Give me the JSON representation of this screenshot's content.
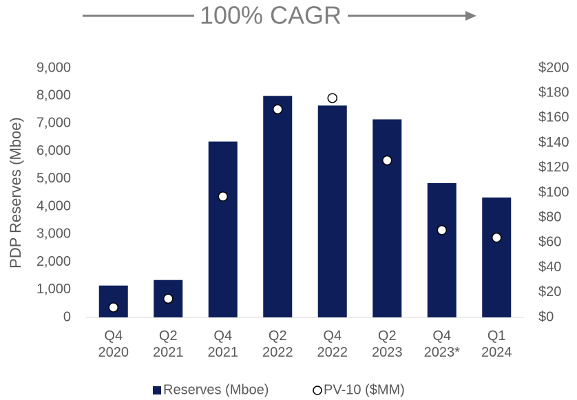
{
  "chart_data": {
    "type": "bar",
    "title": "100% CAGR",
    "y_label": "PDP Reserves (Mboe)",
    "categories": [
      "Q4\n2020",
      "Q2\n2021",
      "Q4\n2021",
      "Q2\n2022",
      "Q4\n2022",
      "Q2\n2023",
      "Q4\n2023*",
      "Q1\n2024"
    ],
    "series": [
      {
        "name": "Reserves (Mboe)",
        "color": "#0d1e5a",
        "values": [
          1150,
          1350,
          6350,
          8000,
          7650,
          7150,
          4850,
          4330
        ]
      },
      {
        "name": "PV-10 ($MM)",
        "color": "#ffffff",
        "axis": "y2",
        "values": [
          8,
          15,
          97,
          167,
          176,
          126,
          70,
          64
        ]
      }
    ],
    "ylim": [
      0,
      9000
    ],
    "yticks": [
      0,
      {
        "value": 1000,
        "label": "1,000"
      },
      {
        "value": 2000,
        "label": "2,000"
      },
      {
        "value": 3000,
        "label": "3,000"
      },
      {
        "value": 4000,
        "label": "4,000"
      },
      {
        "value": 5000,
        "label": "5,000"
      },
      {
        "value": 6000,
        "label": "6,000"
      },
      {
        "value": 7000,
        "label": "7,000"
      },
      {
        "value": 8000,
        "label": "8,000"
      },
      {
        "value": 9000,
        "label": "9,000"
      }
    ],
    "y2lim": [
      0,
      200
    ],
    "y2ticks": [
      {
        "value": 0,
        "label": "$0"
      },
      {
        "value": 20,
        "label": "$20"
      },
      {
        "value": 40,
        "label": "$40"
      },
      {
        "value": 60,
        "label": "$60"
      },
      {
        "value": 80,
        "label": "$80"
      },
      {
        "value": 100,
        "label": "$100"
      },
      {
        "value": 120,
        "label": "$120"
      },
      {
        "value": 140,
        "label": "$140"
      },
      {
        "value": 160,
        "label": "$160"
      },
      {
        "value": 180,
        "label": "$180"
      },
      {
        "value": 200,
        "label": "$200"
      }
    ],
    "grid": false,
    "legend": "bottom"
  }
}
